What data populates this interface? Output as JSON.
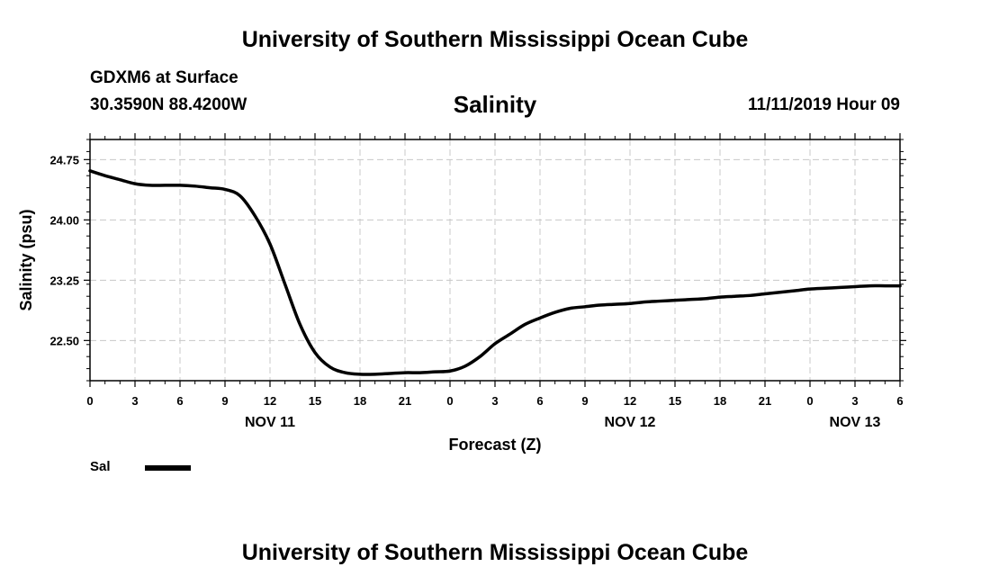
{
  "page": {
    "title_top": "University of Southern Mississippi Ocean Cube",
    "title_bottom": "University of Southern Mississippi Ocean Cube",
    "station": "GDXM6 at Surface",
    "coords": "30.3590N 88.4200W",
    "variable": "Salinity",
    "datetime": "11/11/2019 Hour 09"
  },
  "chart_data": {
    "type": "line",
    "title": "Salinity",
    "xlabel": "Forecast (Z)",
    "ylabel": "Salinity (psu)",
    "xlim": [
      0,
      54
    ],
    "ylim": [
      22.0,
      25.0
    ],
    "yticks": [
      "22.50",
      "23.25",
      "24.00",
      "24.75"
    ],
    "ytick_values": [
      22.5,
      23.25,
      24.0,
      24.75
    ],
    "xticks": [
      "0",
      "3",
      "6",
      "9",
      "12",
      "15",
      "18",
      "21",
      "0",
      "3",
      "6",
      "9",
      "12",
      "15",
      "18",
      "21",
      "0",
      "3",
      "6"
    ],
    "date_labels": [
      {
        "label": "NOV 11",
        "at_hour": 12
      },
      {
        "label": "NOV 12",
        "at_hour": 36
      },
      {
        "label": "NOV 13",
        "at_hour": 51
      }
    ],
    "grid": true,
    "legend": {
      "position": "bottom-left",
      "label": "Sal"
    },
    "series": [
      {
        "name": "Sal",
        "color": "#000000",
        "x": [
          0,
          1,
          2,
          3,
          4,
          5,
          6,
          7,
          8,
          9,
          10,
          11,
          12,
          13,
          14,
          15,
          16,
          17,
          18,
          19,
          20,
          21,
          22,
          23,
          24,
          25,
          26,
          27,
          28,
          29,
          30,
          31,
          32,
          33,
          34,
          35,
          36,
          37,
          38,
          39,
          40,
          41,
          42,
          43,
          44,
          45,
          46,
          47,
          48,
          49,
          50,
          51,
          52,
          53,
          54
        ],
        "y": [
          24.61,
          24.55,
          24.5,
          24.45,
          24.43,
          24.43,
          24.43,
          24.42,
          24.4,
          24.38,
          24.3,
          24.05,
          23.7,
          23.2,
          22.7,
          22.35,
          22.17,
          22.1,
          22.08,
          22.08,
          22.09,
          22.1,
          22.1,
          22.11,
          22.12,
          22.18,
          22.3,
          22.46,
          22.58,
          22.7,
          22.78,
          22.85,
          22.9,
          22.92,
          22.94,
          22.95,
          22.96,
          22.98,
          22.99,
          23.0,
          23.01,
          23.02,
          23.04,
          23.05,
          23.06,
          23.08,
          23.1,
          23.12,
          23.14,
          23.15,
          23.16,
          23.17,
          23.18,
          23.18,
          23.18
        ]
      }
    ]
  }
}
